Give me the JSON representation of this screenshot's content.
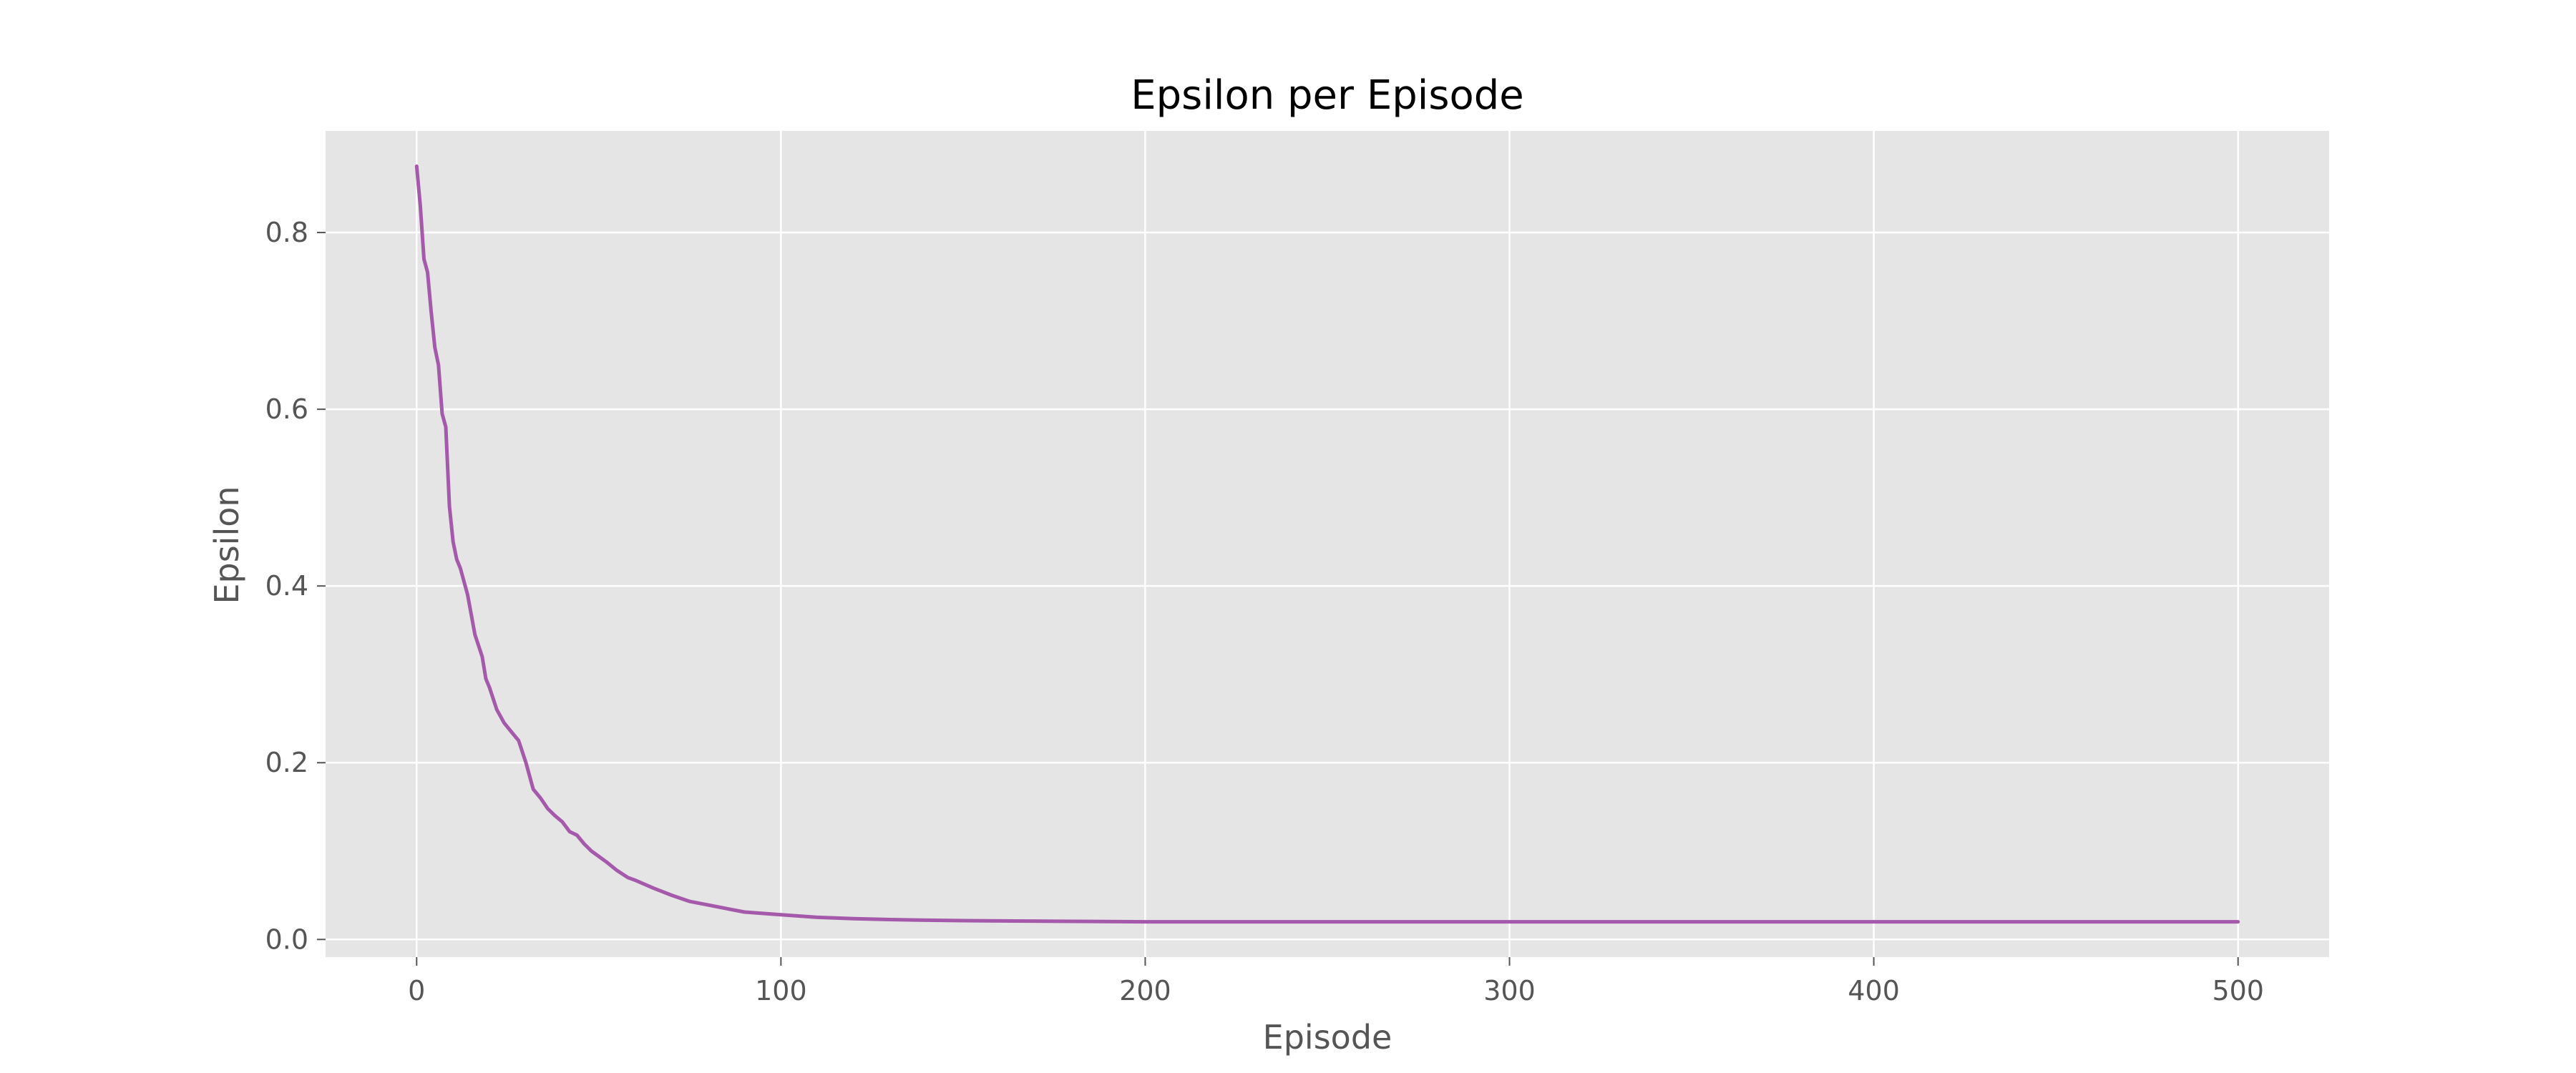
{
  "chart_data": {
    "type": "line",
    "title": "Epsilon per Episode",
    "xlabel": "Episode",
    "ylabel": "Epsilon",
    "xlim": [
      -25,
      525
    ],
    "ylim": [
      -0.02,
      0.915
    ],
    "xticks": [
      0,
      100,
      200,
      300,
      400,
      500
    ],
    "yticks": [
      0.0,
      0.2,
      0.4,
      0.6,
      0.8
    ],
    "xtick_labels": [
      "0",
      "100",
      "200",
      "300",
      "400",
      "500"
    ],
    "ytick_labels": [
      "0.0",
      "0.2",
      "0.4",
      "0.6",
      "0.8"
    ],
    "grid": true,
    "legend": "none",
    "series": [
      {
        "color": "#a559aa",
        "x": [
          0,
          1,
          2,
          3,
          4,
          5,
          6,
          7,
          8,
          9,
          10,
          11,
          12,
          14,
          16,
          18,
          19,
          20,
          22,
          24,
          26,
          28,
          30,
          32,
          34,
          36,
          38,
          40,
          42,
          44,
          46,
          48,
          50,
          52,
          55,
          58,
          60,
          65,
          70,
          75,
          80,
          85,
          90,
          100,
          110,
          120,
          130,
          140,
          150,
          160,
          180,
          200,
          250,
          300,
          350,
          400,
          450,
          500
        ],
        "y": [
          0.875,
          0.83,
          0.77,
          0.755,
          0.71,
          0.67,
          0.65,
          0.595,
          0.58,
          0.49,
          0.45,
          0.43,
          0.42,
          0.39,
          0.345,
          0.32,
          0.295,
          0.285,
          0.26,
          0.245,
          0.235,
          0.225,
          0.2,
          0.17,
          0.16,
          0.148,
          0.14,
          0.133,
          0.122,
          0.118,
          0.108,
          0.1,
          0.094,
          0.088,
          0.078,
          0.07,
          0.067,
          0.058,
          0.05,
          0.043,
          0.039,
          0.035,
          0.031,
          0.028,
          0.025,
          0.0235,
          0.0225,
          0.0218,
          0.0213,
          0.021,
          0.0205,
          0.02,
          0.02,
          0.02,
          0.02,
          0.02,
          0.02,
          0.02
        ]
      }
    ]
  }
}
